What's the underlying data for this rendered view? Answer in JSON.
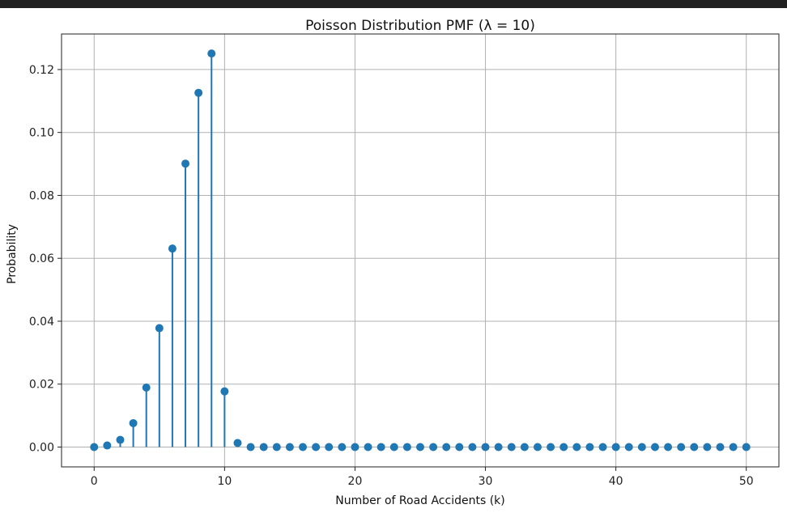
{
  "chart_data": {
    "type": "scatter",
    "style": "stem",
    "title": "Poisson Distribution PMF (λ = 10)",
    "xlabel": "Number of Road Accidents (k)",
    "ylabel": "Probability",
    "xlim": [
      -2.5,
      52.5
    ],
    "ylim": [
      -0.0063,
      0.1313
    ],
    "xticks": [
      0,
      10,
      20,
      30,
      40,
      50
    ],
    "xtick_labels": [
      "0",
      "10",
      "20",
      "30",
      "40",
      "50"
    ],
    "yticks": [
      0.0,
      0.02,
      0.04,
      0.06,
      0.08,
      0.1,
      0.12
    ],
    "ytick_labels": [
      "0.00",
      "0.02",
      "0.04",
      "0.06",
      "0.08",
      "0.10",
      "0.12"
    ],
    "grid": true,
    "color": "#1f77b4",
    "x": [
      0,
      1,
      2,
      3,
      4,
      5,
      6,
      7,
      8,
      9,
      10,
      11,
      12,
      13,
      14,
      15,
      16,
      17,
      18,
      19,
      20,
      21,
      22,
      23,
      24,
      25,
      26,
      27,
      28,
      29,
      30,
      31,
      32,
      33,
      34,
      35,
      36,
      37,
      38,
      39,
      40,
      41,
      42,
      43,
      44,
      45,
      46,
      47,
      48,
      49,
      50
    ],
    "y": [
      0.0,
      0.0005,
      0.0023,
      0.0076,
      0.0189,
      0.0378,
      0.0631,
      0.0901,
      0.1126,
      0.1251,
      0.0177,
      0.0013,
      0.0,
      0.0,
      0.0,
      0.0,
      0.0,
      0.0,
      0.0,
      0.0,
      0.0,
      0.0,
      0.0,
      0.0,
      0.0,
      0.0,
      0.0,
      0.0,
      0.0,
      0.0,
      0.0,
      0.0,
      0.0,
      0.0,
      0.0,
      0.0,
      0.0,
      0.0,
      0.0,
      0.0,
      0.0,
      0.0,
      0.0,
      0.0,
      0.0,
      0.0,
      0.0,
      0.0,
      0.0,
      0.0,
      0.0
    ]
  }
}
